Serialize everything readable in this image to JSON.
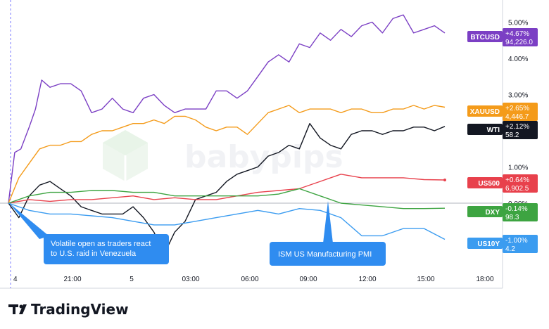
{
  "chart_data": {
    "type": "line",
    "title": "",
    "xlabel": "",
    "ylabel": "",
    "y_unit": "percent change",
    "ylim": [
      -1.8,
      5.5
    ],
    "x_ticks": [
      "4",
      "21:00",
      "5",
      "03:00",
      "06:00",
      "09:00",
      "12:00",
      "15:00",
      "18:00"
    ],
    "y_ticks": [
      "5.00%",
      "4.00%",
      "3.00%",
      "1.00%",
      "0.00%"
    ],
    "grid": false,
    "watermark": "babypips",
    "series": [
      {
        "name": "BTCUSD",
        "color": "#7b3fc4",
        "change": "+4.67%",
        "last": "94,226.0",
        "x": [
          0,
          0.3,
          0.6,
          1,
          1.3,
          1.6,
          2,
          2.5,
          3,
          3.5,
          4,
          4.5,
          5,
          5.5,
          6,
          6.5,
          7,
          7.5,
          8,
          8.5,
          9,
          9.5,
          10,
          10.5,
          11,
          11.5,
          12,
          12.5,
          13,
          13.5,
          14,
          14.5,
          15,
          15.5,
          16,
          16.5,
          17,
          17.5,
          18,
          18.5,
          19,
          19.5,
          20,
          20.5,
          21
        ],
        "y": [
          0,
          1.4,
          1.5,
          2.1,
          2.6,
          3.4,
          3.2,
          3.3,
          3.3,
          3.1,
          2.5,
          2.6,
          2.9,
          2.6,
          2.5,
          2.9,
          3.0,
          2.7,
          2.5,
          2.6,
          2.6,
          2.6,
          3.1,
          3.1,
          2.9,
          3.1,
          3.5,
          3.9,
          4.1,
          3.9,
          4.4,
          4.3,
          4.7,
          4.5,
          4.8,
          4.6,
          4.9,
          5.0,
          4.7,
          5.1,
          5.2,
          4.7,
          4.8,
          4.9,
          4.7
        ]
      },
      {
        "name": "XAUUSD",
        "color": "#f49b1a",
        "change": "+2.65%",
        "last": "4,446.7",
        "x": [
          0,
          0.5,
          1,
          1.5,
          2,
          2.5,
          3,
          3.5,
          4,
          4.5,
          5,
          5.5,
          6,
          6.5,
          7,
          7.5,
          8,
          8.5,
          9,
          9.5,
          10,
          10.5,
          11,
          11.5,
          12,
          12.5,
          13,
          13.5,
          14,
          14.5,
          15,
          15.5,
          16,
          16.5,
          17,
          17.5,
          18,
          18.5,
          19,
          19.5,
          20,
          20.5,
          21
        ],
        "y": [
          0,
          0.7,
          1.1,
          1.5,
          1.6,
          1.6,
          1.7,
          1.7,
          1.9,
          2.0,
          2.0,
          2.1,
          2.2,
          2.2,
          2.3,
          2.2,
          2.4,
          2.4,
          2.3,
          2.1,
          2.0,
          2.1,
          2.1,
          1.9,
          2.2,
          2.5,
          2.6,
          2.7,
          2.5,
          2.6,
          2.6,
          2.6,
          2.5,
          2.6,
          2.6,
          2.5,
          2.5,
          2.6,
          2.6,
          2.7,
          2.6,
          2.7,
          2.65
        ]
      },
      {
        "name": "WTI",
        "color": "#131722",
        "change": "+2.12%",
        "last": "58.2",
        "x": [
          0,
          0.5,
          1,
          1.5,
          2,
          2.5,
          3,
          3.5,
          4,
          4.5,
          5,
          5.5,
          6,
          6.5,
          7,
          7.5,
          8,
          8.5,
          9,
          9.5,
          10,
          10.5,
          11,
          11.5,
          12,
          12.5,
          13,
          13.5,
          14,
          14.5,
          15,
          15.5,
          16,
          16.5,
          17,
          17.5,
          18,
          18.5,
          19,
          19.5,
          20,
          20.5,
          21
        ],
        "y": [
          0,
          -0.4,
          0.2,
          0.5,
          0.6,
          0.4,
          0.2,
          -0.1,
          -0.2,
          -0.3,
          -0.3,
          -0.3,
          -0.1,
          -0.4,
          -0.8,
          -1.4,
          -0.8,
          -0.5,
          0.1,
          0.2,
          0.3,
          0.6,
          0.8,
          0.9,
          1.0,
          1.3,
          1.4,
          1.6,
          1.5,
          2.2,
          1.8,
          1.6,
          1.5,
          1.9,
          2.0,
          2.0,
          1.9,
          2.0,
          2.0,
          2.1,
          2.1,
          2.0,
          2.12
        ]
      },
      {
        "name": "US500",
        "color": "#e8414c",
        "change": "+0.64%",
        "last": "6,902.5",
        "x": [
          0,
          1,
          2,
          3,
          4,
          5,
          6,
          7,
          8,
          9,
          10,
          11,
          12,
          13,
          14,
          15,
          16,
          17,
          18,
          19,
          20,
          21
        ],
        "y": [
          0,
          0.1,
          0.05,
          0.1,
          0.1,
          0.15,
          0.2,
          0.1,
          0.15,
          0.1,
          0.1,
          0.2,
          0.3,
          0.35,
          0.4,
          0.6,
          0.8,
          0.7,
          0.7,
          0.7,
          0.65,
          0.64
        ]
      },
      {
        "name": "DXY",
        "color": "#3da441",
        "change": "-0.14%",
        "last": "98.3",
        "x": [
          0,
          1,
          2,
          3,
          4,
          5,
          6,
          7,
          8,
          9,
          10,
          11,
          12,
          13,
          14,
          15,
          16,
          17,
          18,
          19,
          20,
          21
        ],
        "y": [
          0,
          0.2,
          0.3,
          0.3,
          0.35,
          0.35,
          0.3,
          0.3,
          0.2,
          0.2,
          0.2,
          0.2,
          0.2,
          0.25,
          0.4,
          0.2,
          0.0,
          -0.05,
          -0.1,
          -0.15,
          -0.15,
          -0.14
        ]
      },
      {
        "name": "US10Y",
        "color": "#3b9cf0",
        "change": "-1.00%",
        "last": "4.2",
        "x": [
          0,
          1,
          2,
          3,
          4,
          5,
          6,
          7,
          8,
          9,
          10,
          11,
          12,
          13,
          14,
          15,
          16,
          17,
          18,
          19,
          20,
          21
        ],
        "y": [
          0,
          -0.2,
          -0.3,
          -0.3,
          -0.35,
          -0.4,
          -0.5,
          -0.6,
          -0.6,
          -0.5,
          -0.4,
          -0.3,
          -0.2,
          -0.3,
          -0.15,
          -0.2,
          -0.4,
          -0.9,
          -0.9,
          -0.7,
          -0.7,
          -1.0
        ]
      }
    ],
    "annotations": [
      {
        "id": "volatile-open",
        "text_lines": [
          "Volatile open as traders react",
          "to U.S. raid in Venezuela"
        ],
        "color": "#2f8cf0"
      },
      {
        "id": "ism-pmi",
        "text_lines": [
          "ISM US Manufacturing PMI"
        ],
        "color": "#2f8cf0"
      }
    ]
  },
  "branding": {
    "name": "TradingView",
    "logo_glyph": "TV"
  }
}
